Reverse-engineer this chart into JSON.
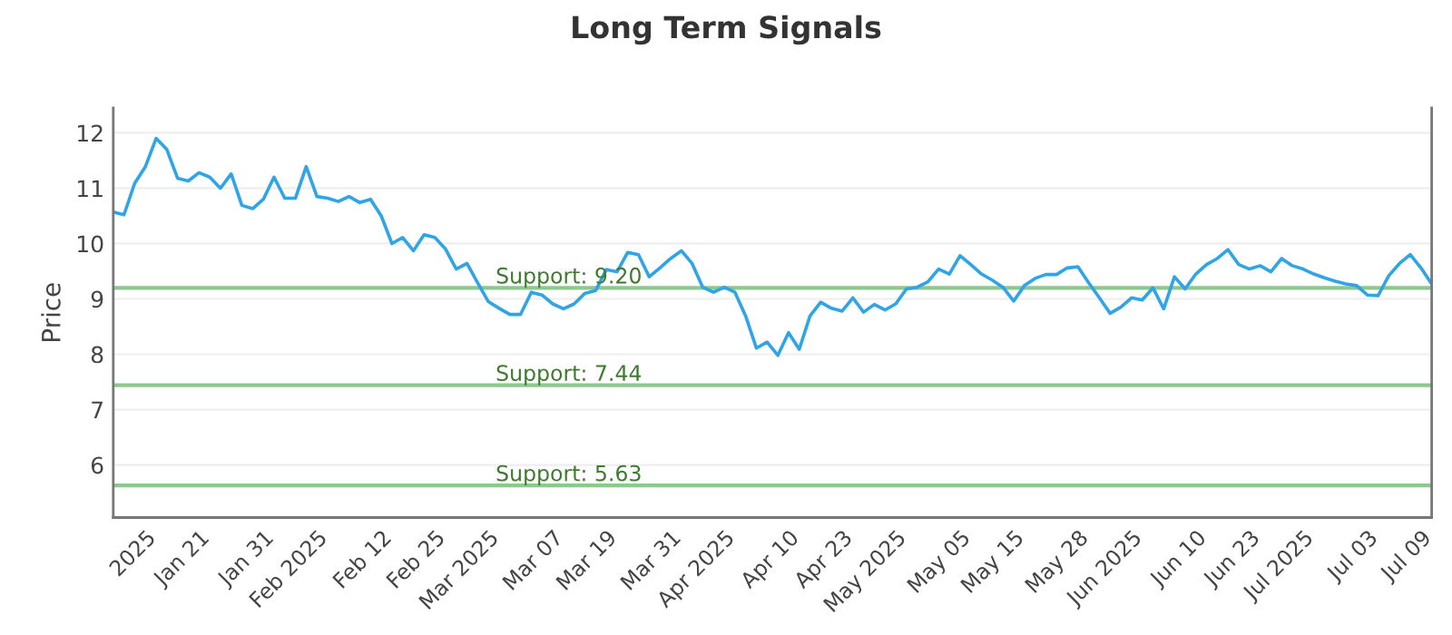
{
  "chart_data": {
    "type": "line",
    "title": "Long Term Signals",
    "ylabel": "Price",
    "categories": [
      null,
      null,
      null,
      "2025",
      null,
      null,
      null,
      null,
      "Jan 21",
      null,
      null,
      null,
      null,
      null,
      "Jan 31",
      null,
      null,
      null,
      null,
      "Feb 2025",
      null,
      null,
      null,
      null,
      null,
      "Feb 12",
      null,
      null,
      null,
      null,
      "Feb 25",
      null,
      null,
      null,
      null,
      "Mar 2025",
      null,
      null,
      null,
      null,
      null,
      "Mar 07",
      null,
      null,
      null,
      null,
      "Mar 19",
      null,
      null,
      null,
      null,
      null,
      "Mar 31",
      null,
      null,
      null,
      null,
      "Apr 2025",
      null,
      null,
      null,
      null,
      null,
      "Apr 10",
      null,
      null,
      null,
      null,
      "Apr 23",
      null,
      null,
      null,
      null,
      "May 2025",
      null,
      null,
      null,
      null,
      null,
      "May 05",
      null,
      null,
      null,
      null,
      "May 15",
      null,
      null,
      null,
      null,
      null,
      "May 28",
      null,
      null,
      null,
      null,
      "Jun 2025",
      null,
      null,
      null,
      null,
      null,
      "Jun 10",
      null,
      null,
      null,
      null,
      "Jun 23",
      null,
      null,
      null,
      null,
      "Jul 2025",
      null,
      null,
      null,
      null,
      null,
      "Jul 03",
      null,
      null,
      null,
      null,
      "Jul 09",
      null
    ],
    "series": [
      {
        "color": "#2fa4e7",
        "values": [
          10.57,
          10.52,
          11.09,
          11.39,
          11.9,
          11.7,
          11.18,
          11.13,
          11.28,
          11.2,
          11.0,
          11.26,
          10.69,
          10.63,
          10.8,
          11.2,
          10.82,
          10.82,
          11.39,
          10.85,
          10.82,
          10.76,
          10.85,
          10.74,
          10.8,
          10.5,
          10.0,
          10.11,
          9.87,
          10.16,
          10.11,
          9.9,
          9.54,
          9.64,
          9.29,
          8.95,
          8.83,
          8.72,
          8.72,
          9.12,
          9.07,
          8.91,
          8.82,
          8.91,
          9.1,
          9.15,
          9.53,
          9.49,
          9.84,
          9.8,
          9.4,
          9.56,
          9.73,
          9.87,
          9.64,
          9.21,
          9.12,
          9.21,
          9.12,
          8.69,
          8.11,
          8.22,
          7.98,
          8.39,
          8.09,
          8.69,
          8.94,
          8.83,
          8.78,
          9.02,
          8.76,
          8.9,
          8.8,
          8.91,
          9.18,
          9.21,
          9.31,
          9.54,
          9.45,
          9.78,
          9.62,
          9.45,
          9.34,
          9.21,
          8.96,
          9.24,
          9.37,
          9.44,
          9.44,
          9.56,
          9.58,
          9.29,
          9.02,
          8.74,
          8.85,
          9.02,
          8.98,
          9.2,
          8.82,
          9.4,
          9.18,
          9.45,
          9.62,
          9.73,
          9.89,
          9.62,
          9.54,
          9.6,
          9.49,
          9.73,
          9.6,
          9.54,
          9.45,
          9.38,
          9.32,
          9.27,
          9.24,
          9.07,
          9.06,
          9.42,
          9.64,
          9.8,
          9.56,
          9.27
        ]
      }
    ],
    "ylim": [
      5.05,
      12.45
    ],
    "yticks": [
      6,
      7,
      8,
      9,
      10,
      11,
      12
    ],
    "ref_lines": [
      {
        "axis": "y",
        "value": 9.2,
        "label": "Support: 9.20",
        "color": "#8cc98c"
      },
      {
        "axis": "y",
        "value": 7.44,
        "label": "Support: 7.44",
        "color": "#8cc98c"
      },
      {
        "axis": "y",
        "value": 5.63,
        "label": "Support: 5.63",
        "color": "#8cc98c"
      }
    ],
    "grid": "y",
    "marker": "none",
    "line_style": "solid"
  }
}
